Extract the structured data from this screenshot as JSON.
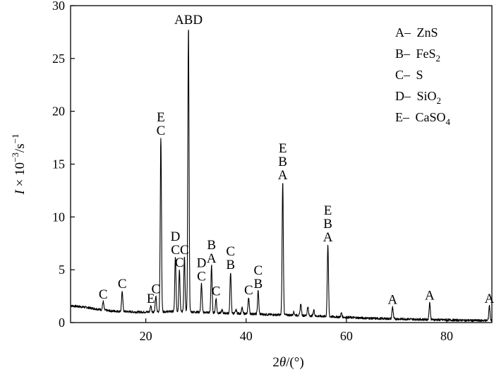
{
  "chart_data": {
    "type": "line",
    "title": "",
    "xlabel": {
      "pre": "2",
      "theta": "θ",
      "post": "/(°)"
    },
    "ylabel": {
      "var": "I",
      "mult": " × 10",
      "exp": "−3",
      "unit": "/s",
      "unit_exp": "−1"
    },
    "xlim": [
      5,
      89
    ],
    "ylim": [
      0,
      30
    ],
    "x_ticks": [
      20,
      40,
      60,
      80
    ],
    "x_tick_labels": [
      "20",
      "40",
      "60",
      "80"
    ],
    "y_ticks": [
      0,
      5,
      10,
      15,
      20,
      25,
      30
    ],
    "y_tick_labels": [
      "0",
      "5",
      "10",
      "15",
      "20",
      "25",
      "30"
    ],
    "baseline": [
      [
        5,
        1.6
      ],
      [
        8,
        1.45
      ],
      [
        10,
        1.3
      ],
      [
        13,
        1.1
      ],
      [
        16,
        1.05
      ],
      [
        18,
        1.0
      ],
      [
        20,
        1.0
      ],
      [
        25,
        1.05
      ],
      [
        30,
        1.0
      ],
      [
        35,
        0.9
      ],
      [
        40,
        0.85
      ],
      [
        45,
        0.75
      ],
      [
        50,
        0.7
      ],
      [
        55,
        0.6
      ],
      [
        60,
        0.5
      ],
      [
        65,
        0.4
      ],
      [
        70,
        0.35
      ],
      [
        75,
        0.3
      ],
      [
        80,
        0.25
      ],
      [
        85,
        0.2
      ],
      [
        89,
        0.2
      ]
    ],
    "peaks": [
      {
        "x": 11.5,
        "y": 2.0,
        "labels": [
          "C"
        ]
      },
      {
        "x": 15.3,
        "y": 3.0,
        "labels": [
          "C"
        ]
      },
      {
        "x": 21.0,
        "y": 1.6,
        "labels": [
          "E"
        ]
      },
      {
        "x": 22.0,
        "y": 2.5,
        "labels": [
          "C"
        ]
      },
      {
        "x": 23.0,
        "y": 17.5,
        "labels": [
          "E",
          "C"
        ]
      },
      {
        "x": 25.9,
        "y": 6.2,
        "labels": [
          "D",
          "C"
        ]
      },
      {
        "x": 26.7,
        "y": 5.0,
        "labels": [
          "C"
        ]
      },
      {
        "x": 27.7,
        "y": 6.2,
        "labels": [
          "C"
        ]
      },
      {
        "x": 28.5,
        "y": 28.0,
        "labels": [
          "ABD"
        ]
      },
      {
        "x": 31.1,
        "y": 3.7,
        "labels": [
          "D",
          "C"
        ]
      },
      {
        "x": 33.1,
        "y": 5.4,
        "labels": [
          "B",
          "A"
        ]
      },
      {
        "x": 34.0,
        "y": 2.3,
        "labels": [
          "C"
        ]
      },
      {
        "x": 35.2,
        "y": 1.2,
        "labels": []
      },
      {
        "x": 36.9,
        "y": 4.8,
        "labels": [
          "C",
          "B"
        ]
      },
      {
        "x": 38.0,
        "y": 1.2,
        "labels": []
      },
      {
        "x": 39.2,
        "y": 1.4,
        "labels": []
      },
      {
        "x": 40.5,
        "y": 2.4,
        "labels": [
          "C"
        ]
      },
      {
        "x": 42.4,
        "y": 3.0,
        "labels": [
          "C",
          "B"
        ]
      },
      {
        "x": 47.3,
        "y": 13.3,
        "labels": [
          "E",
          "B",
          "A"
        ]
      },
      {
        "x": 49.5,
        "y": 1.0,
        "labels": []
      },
      {
        "x": 50.9,
        "y": 1.8,
        "labels": []
      },
      {
        "x": 52.3,
        "y": 1.5,
        "labels": []
      },
      {
        "x": 53.5,
        "y": 1.2,
        "labels": []
      },
      {
        "x": 56.3,
        "y": 7.4,
        "labels": [
          "E",
          "B",
          "A"
        ]
      },
      {
        "x": 59.0,
        "y": 0.9,
        "labels": []
      },
      {
        "x": 69.2,
        "y": 1.5,
        "labels": [
          "A"
        ]
      },
      {
        "x": 76.6,
        "y": 1.9,
        "labels": [
          "A"
        ]
      },
      {
        "x": 88.5,
        "y": 1.6,
        "labels": [
          "A"
        ]
      }
    ],
    "legend_position": "top-right",
    "legend": [
      {
        "key": "A",
        "formula": "ZnS",
        "sub": ""
      },
      {
        "key": "B",
        "formula": "FeS",
        "sub": "2"
      },
      {
        "key": "C",
        "formula": "S",
        "sub": ""
      },
      {
        "key": "D",
        "formula": "SiO",
        "sub": "2"
      },
      {
        "key": "E",
        "formula": "CaSO",
        "sub": "4"
      }
    ],
    "grid": false,
    "line_color": "#000000"
  }
}
